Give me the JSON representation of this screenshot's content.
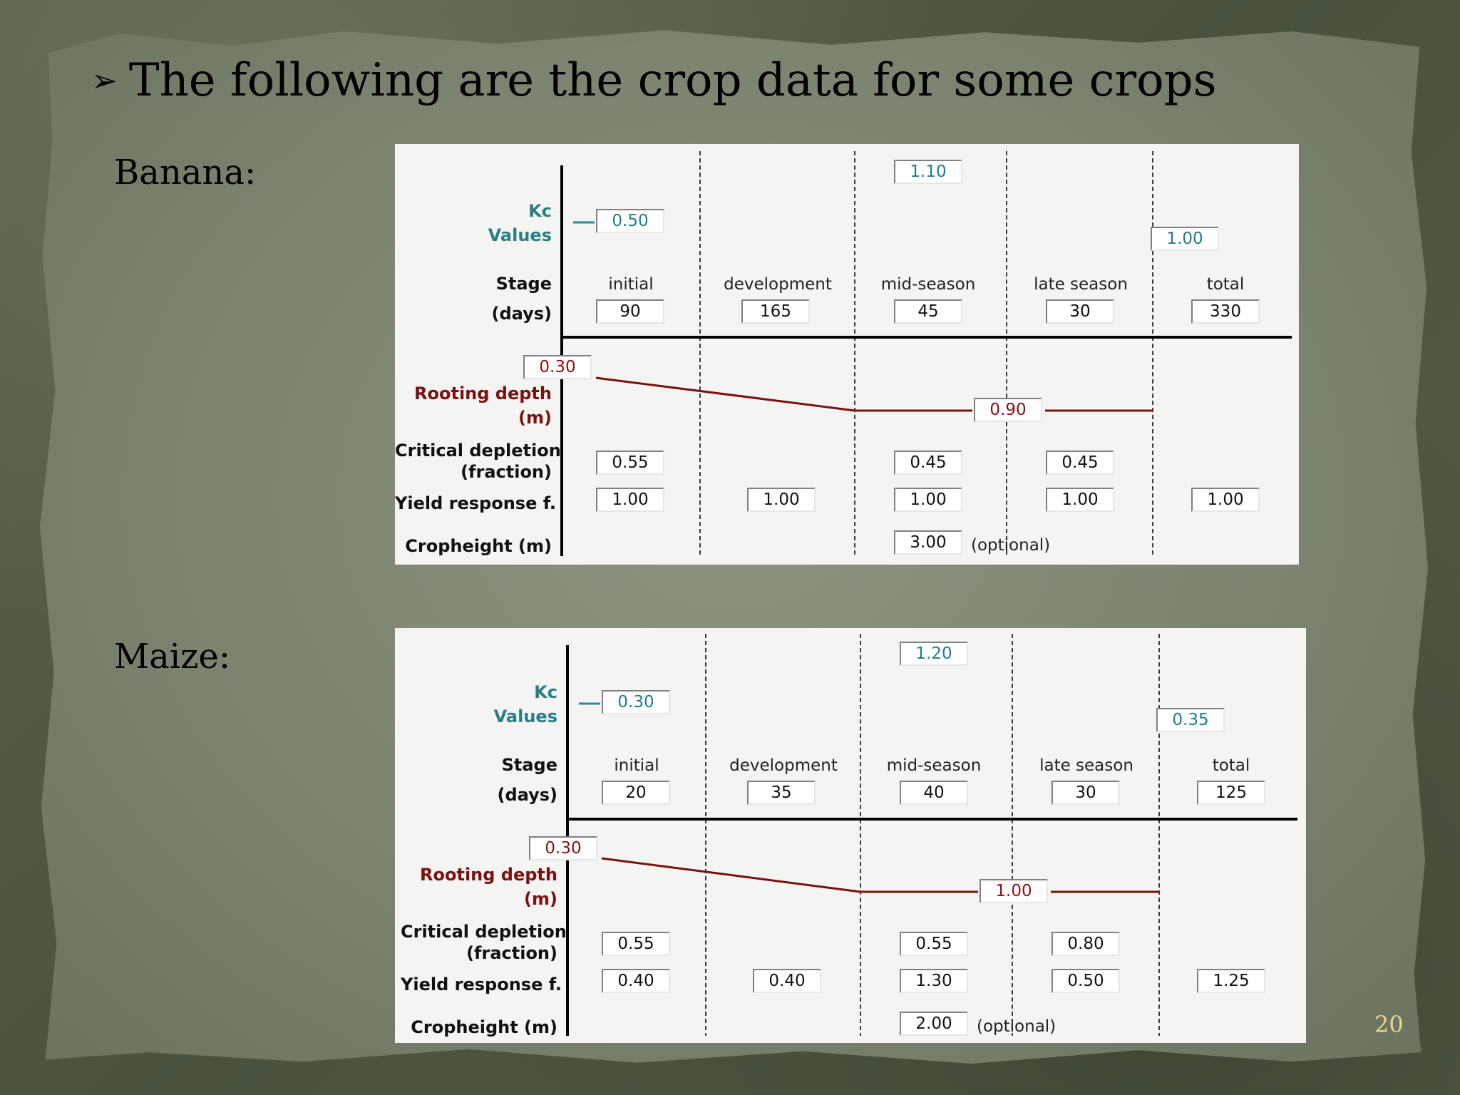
{
  "slide": {
    "title": "The following are the crop data for some crops",
    "bullet_icon": "arrow-bullet-icon",
    "page_number": "20",
    "colors": {
      "kc": "#2a8a8c",
      "root": "#7a1010",
      "page_number": "#e8d48a"
    }
  },
  "crops": [
    {
      "name": "Banana:",
      "labels": {
        "kc_line1": "Kc",
        "kc_line2": "Values",
        "stage_line1": "Stage",
        "stage_line2": "(days)",
        "root_line1": "Rooting depth",
        "root_line2": "(m)",
        "depl_line1": "Critical depletion",
        "depl_line2": "(fraction)",
        "yield": "Yield response f.",
        "height": "Cropheight (m)",
        "optional": "(optional)"
      },
      "stage_names": [
        "initial",
        "development",
        "mid-season",
        "late season",
        "total"
      ],
      "kc": {
        "ini": "0.50",
        "mid": "1.10",
        "end": "1.00"
      },
      "stage_days": [
        "90",
        "165",
        "45",
        "30",
        "330"
      ],
      "rooting": {
        "min": "0.30",
        "max": "0.90"
      },
      "depletion": [
        "0.55",
        "0.45",
        "0.45"
      ],
      "yield_response": [
        "1.00",
        "1.00",
        "1.00",
        "1.00",
        "1.00"
      ],
      "crop_height": "3.00"
    },
    {
      "name": "Maize:",
      "labels": {
        "kc_line1": "Kc",
        "kc_line2": "Values",
        "stage_line1": "Stage",
        "stage_line2": "(days)",
        "root_line1": "Rooting depth",
        "root_line2": "(m)",
        "depl_line1": "Critical depletion",
        "depl_line2": "(fraction)",
        "yield": "Yield response f.",
        "height": "Cropheight (m)",
        "optional": "(optional)"
      },
      "stage_names": [
        "initial",
        "development",
        "mid-season",
        "late season",
        "total"
      ],
      "kc": {
        "ini": "0.30",
        "mid": "1.20",
        "end": "0.35"
      },
      "stage_days": [
        "20",
        "35",
        "40",
        "30",
        "125"
      ],
      "rooting": {
        "min": "0.30",
        "max": "1.00"
      },
      "depletion": [
        "0.55",
        "0.55",
        "0.80"
      ],
      "yield_response": [
        "0.40",
        "0.40",
        "1.30",
        "0.50",
        "1.25"
      ],
      "crop_height": "2.00"
    }
  ]
}
